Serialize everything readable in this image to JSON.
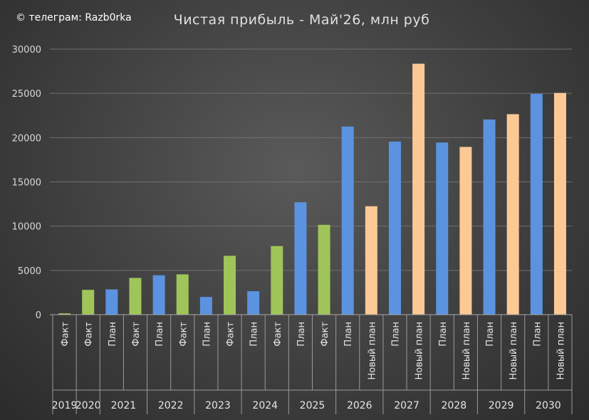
{
  "watermark": "© телеграм: Razb0rka",
  "chart_data": {
    "type": "bar",
    "title": "Чистая прибыль - Май'26, млн руб",
    "xlabel": "",
    "ylabel": "",
    "ylim": [
      0,
      30000
    ],
    "yticks": [
      0,
      5000,
      10000,
      15000,
      20000,
      25000,
      30000
    ],
    "grid": true,
    "legend": "none",
    "colors": {
      "План": "#5b93e0",
      "Факт": "#9fc55a",
      "Новый план": "#fcc995"
    },
    "groups": [
      {
        "year": "2019",
        "bars": [
          {
            "label": "Факт",
            "value": 150
          }
        ]
      },
      {
        "year": "2020",
        "bars": [
          {
            "label": "Факт",
            "value": 2800
          }
        ]
      },
      {
        "year": "2021",
        "bars": [
          {
            "label": "План",
            "value": 2850
          },
          {
            "label": "Факт",
            "value": 4150
          }
        ]
      },
      {
        "year": "2022",
        "bars": [
          {
            "label": "План",
            "value": 4450
          },
          {
            "label": "Факт",
            "value": 4550
          }
        ]
      },
      {
        "year": "2023",
        "bars": [
          {
            "label": "План",
            "value": 2000
          },
          {
            "label": "Факт",
            "value": 6650
          }
        ]
      },
      {
        "year": "2024",
        "bars": [
          {
            "label": "План",
            "value": 2650
          },
          {
            "label": "Факт",
            "value": 7750
          }
        ]
      },
      {
        "year": "2025",
        "bars": [
          {
            "label": "План",
            "value": 12700
          },
          {
            "label": "Факт",
            "value": 10150
          }
        ]
      },
      {
        "year": "2026",
        "bars": [
          {
            "label": "План",
            "value": 21250
          },
          {
            "label": "Новый план",
            "value": 12250
          }
        ]
      },
      {
        "year": "2027",
        "bars": [
          {
            "label": "План",
            "value": 19550
          },
          {
            "label": "Новый план",
            "value": 28350
          }
        ]
      },
      {
        "year": "2028",
        "bars": [
          {
            "label": "План",
            "value": 19450
          },
          {
            "label": "Новый план",
            "value": 18950
          }
        ]
      },
      {
        "year": "2029",
        "bars": [
          {
            "label": "План",
            "value": 22050
          },
          {
            "label": "Новый план",
            "value": 22650
          }
        ]
      },
      {
        "year": "2030",
        "bars": [
          {
            "label": "План",
            "value": 24950
          },
          {
            "label": "Новый план",
            "value": 25050
          }
        ]
      }
    ]
  }
}
